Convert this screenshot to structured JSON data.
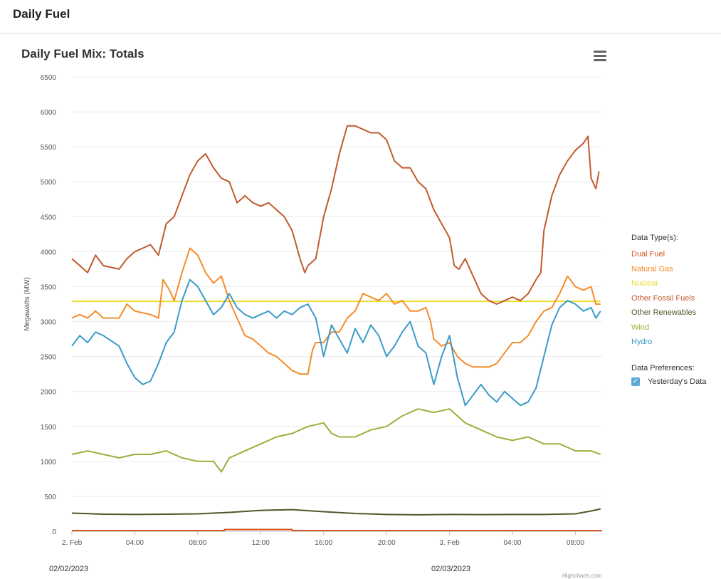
{
  "header": {
    "title": "Daily Fuel"
  },
  "chart_data": {
    "type": "line",
    "title": "Daily Fuel Mix: Totals",
    "ylabel": "Megawatts (MW)",
    "ylim": [
      0,
      6500
    ],
    "yticks": [
      0,
      500,
      1000,
      1500,
      2000,
      2500,
      3000,
      3500,
      4000,
      4500,
      5000,
      5500,
      6000,
      6500
    ],
    "xlim_hours": [
      0,
      33.7
    ],
    "xticks": [
      {
        "h": 0,
        "label": "2. Feb"
      },
      {
        "h": 4,
        "label": "04:00"
      },
      {
        "h": 8,
        "label": "08:00"
      },
      {
        "h": 12,
        "label": "12:00"
      },
      {
        "h": 16,
        "label": "16:00"
      },
      {
        "h": 20,
        "label": "20:00"
      },
      {
        "h": 24,
        "label": "3. Feb"
      },
      {
        "h": 28,
        "label": "04:00"
      },
      {
        "h": 32,
        "label": "08:00"
      }
    ],
    "series": [
      {
        "name": "Dual Fuel",
        "color": "#d9531e",
        "points": [
          [
            0,
            10
          ],
          [
            9.7,
            10
          ],
          [
            9.7,
            25
          ],
          [
            14,
            25
          ],
          [
            14,
            10
          ],
          [
            33.7,
            10
          ]
        ]
      },
      {
        "name": "Natural Gas",
        "color": "#f58c28",
        "points": [
          [
            0,
            3050
          ],
          [
            0.5,
            3100
          ],
          [
            1,
            3050
          ],
          [
            1.5,
            3150
          ],
          [
            2,
            3050
          ],
          [
            3,
            3050
          ],
          [
            3.5,
            3250
          ],
          [
            4,
            3150
          ],
          [
            5,
            3100
          ],
          [
            5.5,
            3050
          ],
          [
            5.8,
            3600
          ],
          [
            6.2,
            3450
          ],
          [
            6.5,
            3300
          ],
          [
            7,
            3700
          ],
          [
            7.5,
            4050
          ],
          [
            8,
            3950
          ],
          [
            8.5,
            3700
          ],
          [
            9,
            3550
          ],
          [
            9.5,
            3650
          ],
          [
            10,
            3300
          ],
          [
            10.5,
            3050
          ],
          [
            11,
            2800
          ],
          [
            11.5,
            2750
          ],
          [
            12,
            2650
          ],
          [
            12.5,
            2550
          ],
          [
            13,
            2500
          ],
          [
            13.5,
            2400
          ],
          [
            14,
            2300
          ],
          [
            14.5,
            2250
          ],
          [
            15,
            2250
          ],
          [
            15.3,
            2600
          ],
          [
            15.5,
            2700
          ],
          [
            16,
            2700
          ],
          [
            16.5,
            2850
          ],
          [
            17,
            2850
          ],
          [
            17.5,
            3050
          ],
          [
            18,
            3150
          ],
          [
            18.5,
            3400
          ],
          [
            19,
            3350
          ],
          [
            19.5,
            3300
          ],
          [
            20,
            3400
          ],
          [
            20.5,
            3250
          ],
          [
            21,
            3300
          ],
          [
            21.5,
            3150
          ],
          [
            22,
            3150
          ],
          [
            22.5,
            3200
          ],
          [
            22.8,
            3000
          ],
          [
            23,
            2750
          ],
          [
            23.5,
            2650
          ],
          [
            24,
            2700
          ],
          [
            24.5,
            2500
          ],
          [
            25,
            2400
          ],
          [
            25.5,
            2350
          ],
          [
            26,
            2350
          ],
          [
            26.5,
            2350
          ],
          [
            27,
            2400
          ],
          [
            27.5,
            2550
          ],
          [
            28,
            2700
          ],
          [
            28.5,
            2700
          ],
          [
            29,
            2800
          ],
          [
            29.5,
            3000
          ],
          [
            30,
            3150
          ],
          [
            30.5,
            3200
          ],
          [
            31,
            3400
          ],
          [
            31.5,
            3650
          ],
          [
            32,
            3500
          ],
          [
            32.5,
            3450
          ],
          [
            33,
            3500
          ],
          [
            33.3,
            3250
          ],
          [
            33.6,
            3250
          ]
        ]
      },
      {
        "name": "Nuclear",
        "color": "#e8dc30",
        "points": [
          [
            0,
            3290
          ],
          [
            33.6,
            3290
          ]
        ]
      },
      {
        "name": "Other Fossil Fuels",
        "color": "#c15a2d",
        "points": [
          [
            0,
            3900
          ],
          [
            0.5,
            3800
          ],
          [
            1,
            3700
          ],
          [
            1.5,
            3950
          ],
          [
            2,
            3800
          ],
          [
            3,
            3750
          ],
          [
            3.5,
            3900
          ],
          [
            4,
            4000
          ],
          [
            4.5,
            4050
          ],
          [
            5,
            4100
          ],
          [
            5.5,
            3950
          ],
          [
            6,
            4400
          ],
          [
            6.5,
            4500
          ],
          [
            7,
            4800
          ],
          [
            7.5,
            5100
          ],
          [
            8,
            5300
          ],
          [
            8.5,
            5400
          ],
          [
            9,
            5200
          ],
          [
            9.5,
            5050
          ],
          [
            10,
            5000
          ],
          [
            10.5,
            4700
          ],
          [
            11,
            4800
          ],
          [
            11.5,
            4700
          ],
          [
            12,
            4650
          ],
          [
            12.5,
            4700
          ],
          [
            13,
            4600
          ],
          [
            13.5,
            4500
          ],
          [
            14,
            4300
          ],
          [
            14.5,
            3900
          ],
          [
            14.8,
            3700
          ],
          [
            15,
            3800
          ],
          [
            15.5,
            3900
          ],
          [
            16,
            4500
          ],
          [
            16.5,
            4900
          ],
          [
            17,
            5400
          ],
          [
            17.5,
            5800
          ],
          [
            18,
            5800
          ],
          [
            18.5,
            5750
          ],
          [
            19,
            5700
          ],
          [
            19.5,
            5700
          ],
          [
            20,
            5600
          ],
          [
            20.5,
            5300
          ],
          [
            21,
            5200
          ],
          [
            21.5,
            5200
          ],
          [
            22,
            5000
          ],
          [
            22.5,
            4900
          ],
          [
            23,
            4600
          ],
          [
            23.5,
            4400
          ],
          [
            24,
            4200
          ],
          [
            24.3,
            3800
          ],
          [
            24.6,
            3750
          ],
          [
            25,
            3900
          ],
          [
            25.5,
            3650
          ],
          [
            26,
            3400
          ],
          [
            26.5,
            3300
          ],
          [
            27,
            3250
          ],
          [
            27.5,
            3300
          ],
          [
            28,
            3350
          ],
          [
            28.5,
            3300
          ],
          [
            29,
            3400
          ],
          [
            29.5,
            3600
          ],
          [
            29.8,
            3700
          ],
          [
            30,
            4300
          ],
          [
            30.5,
            4800
          ],
          [
            31,
            5100
          ],
          [
            31.5,
            5300
          ],
          [
            32,
            5450
          ],
          [
            32.5,
            5550
          ],
          [
            32.8,
            5650
          ],
          [
            33,
            5050
          ],
          [
            33.3,
            4900
          ],
          [
            33.5,
            5150
          ]
        ]
      },
      {
        "name": "Other Renewables",
        "color": "#4b5a2a",
        "points": [
          [
            0,
            260
          ],
          [
            2,
            245
          ],
          [
            4,
            240
          ],
          [
            6,
            245
          ],
          [
            8,
            250
          ],
          [
            10,
            270
          ],
          [
            12,
            300
          ],
          [
            14,
            310
          ],
          [
            16,
            280
          ],
          [
            18,
            255
          ],
          [
            20,
            240
          ],
          [
            22,
            235
          ],
          [
            24,
            240
          ],
          [
            26,
            238
          ],
          [
            28,
            240
          ],
          [
            30,
            240
          ],
          [
            32,
            250
          ],
          [
            33,
            290
          ],
          [
            33.6,
            320
          ]
        ]
      },
      {
        "name": "Wind",
        "color": "#9caf3a",
        "points": [
          [
            0,
            1100
          ],
          [
            1,
            1150
          ],
          [
            2,
            1100
          ],
          [
            3,
            1050
          ],
          [
            4,
            1100
          ],
          [
            5,
            1100
          ],
          [
            6,
            1150
          ],
          [
            7,
            1050
          ],
          [
            8,
            1000
          ],
          [
            9,
            1000
          ],
          [
            9.5,
            850
          ],
          [
            10,
            1050
          ],
          [
            11,
            1150
          ],
          [
            12,
            1250
          ],
          [
            13,
            1350
          ],
          [
            14,
            1400
          ],
          [
            15,
            1500
          ],
          [
            16,
            1550
          ],
          [
            16.5,
            1400
          ],
          [
            17,
            1350
          ],
          [
            18,
            1350
          ],
          [
            19,
            1450
          ],
          [
            20,
            1500
          ],
          [
            21,
            1650
          ],
          [
            22,
            1750
          ],
          [
            23,
            1700
          ],
          [
            24,
            1750
          ],
          [
            24.5,
            1650
          ],
          [
            25,
            1550
          ],
          [
            26,
            1450
          ],
          [
            27,
            1350
          ],
          [
            28,
            1300
          ],
          [
            29,
            1350
          ],
          [
            30,
            1250
          ],
          [
            31,
            1250
          ],
          [
            32,
            1150
          ],
          [
            33,
            1150
          ],
          [
            33.6,
            1100
          ]
        ]
      },
      {
        "name": "Hydro",
        "color": "#3a9bc9",
        "points": [
          [
            0,
            2650
          ],
          [
            0.5,
            2800
          ],
          [
            1,
            2700
          ],
          [
            1.5,
            2850
          ],
          [
            2,
            2800
          ],
          [
            3,
            2650
          ],
          [
            3.5,
            2400
          ],
          [
            4,
            2200
          ],
          [
            4.5,
            2100
          ],
          [
            5,
            2150
          ],
          [
            5.5,
            2400
          ],
          [
            6,
            2700
          ],
          [
            6.5,
            2850
          ],
          [
            7,
            3300
          ],
          [
            7.5,
            3600
          ],
          [
            8,
            3500
          ],
          [
            8.5,
            3300
          ],
          [
            9,
            3100
          ],
          [
            9.5,
            3200
          ],
          [
            10,
            3400
          ],
          [
            10.5,
            3200
          ],
          [
            11,
            3100
          ],
          [
            11.5,
            3050
          ],
          [
            12,
            3100
          ],
          [
            12.5,
            3150
          ],
          [
            13,
            3050
          ],
          [
            13.5,
            3150
          ],
          [
            14,
            3100
          ],
          [
            14.5,
            3200
          ],
          [
            15,
            3250
          ],
          [
            15.5,
            3050
          ],
          [
            16,
            2500
          ],
          [
            16.5,
            2950
          ],
          [
            17,
            2750
          ],
          [
            17.5,
            2550
          ],
          [
            18,
            2900
          ],
          [
            18.5,
            2700
          ],
          [
            19,
            2950
          ],
          [
            19.5,
            2800
          ],
          [
            20,
            2500
          ],
          [
            20.5,
            2650
          ],
          [
            21,
            2850
          ],
          [
            21.5,
            3000
          ],
          [
            22,
            2650
          ],
          [
            22.5,
            2550
          ],
          [
            23,
            2100
          ],
          [
            23.5,
            2500
          ],
          [
            24,
            2800
          ],
          [
            24.5,
            2200
          ],
          [
            25,
            1800
          ],
          [
            25.5,
            1950
          ],
          [
            26,
            2100
          ],
          [
            26.5,
            1950
          ],
          [
            27,
            1850
          ],
          [
            27.5,
            2000
          ],
          [
            28,
            1900
          ],
          [
            28.5,
            1800
          ],
          [
            29,
            1850
          ],
          [
            29.5,
            2050
          ],
          [
            30,
            2500
          ],
          [
            30.5,
            2950
          ],
          [
            31,
            3200
          ],
          [
            31.5,
            3300
          ],
          [
            32,
            3250
          ],
          [
            32.5,
            3150
          ],
          [
            33,
            3200
          ],
          [
            33.3,
            3050
          ],
          [
            33.6,
            3150
          ]
        ]
      }
    ]
  },
  "legend": {
    "title": "Data Type(s):",
    "items": [
      {
        "label": "Dual Fuel",
        "color": "#d9531e"
      },
      {
        "label": "Natural Gas",
        "color": "#f58c28"
      },
      {
        "label": "Nuclear",
        "color": "#e8dc30"
      },
      {
        "label": "Other Fossil Fuels",
        "color": "#c15a2d"
      },
      {
        "label": "Other Renewables",
        "color": "#4b5a2a"
      },
      {
        "label": "Wind",
        "color": "#9caf3a"
      },
      {
        "label": "Hydro",
        "color": "#3a9bc9"
      }
    ]
  },
  "preferences": {
    "title": "Data Preferences:",
    "yesterday_label": "Yesterday's Data",
    "yesterday_checked": true
  },
  "dates": {
    "start": "02/02/2023",
    "end": "02/03/2023"
  },
  "credits": "Highcharts.com",
  "icons": {
    "menu": "hamburger-menu-icon",
    "check": "checkmark-icon"
  }
}
